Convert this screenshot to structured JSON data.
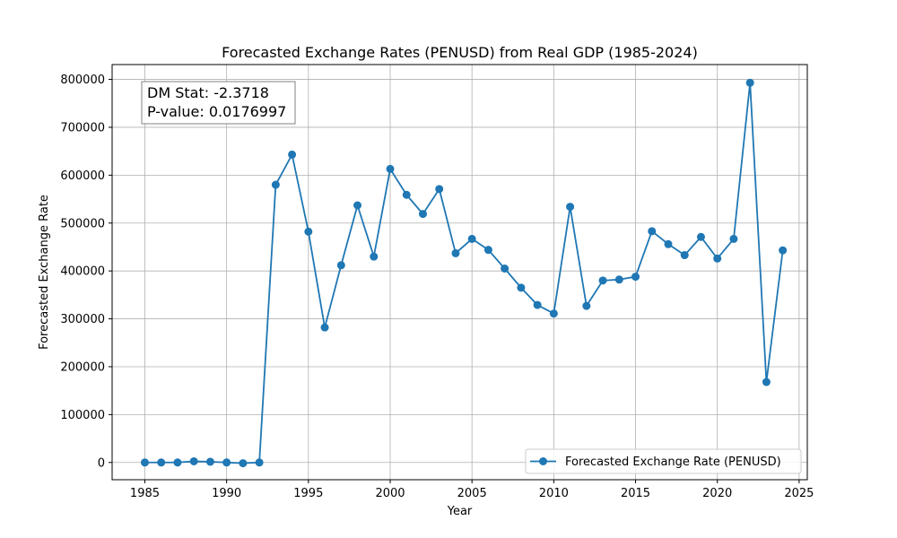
{
  "chart_data": {
    "type": "line",
    "title": "Forecasted Exchange Rates (PENUSD) from Real GDP (1985-2024)",
    "xlabel": "Year",
    "ylabel": "Forecasted Exchange Rate",
    "xlim": [
      1983,
      2025.5
    ],
    "ylim": [
      -36000,
      831000
    ],
    "x_ticks": [
      1985,
      1990,
      1995,
      2000,
      2005,
      2010,
      2015,
      2020,
      2025
    ],
    "y_ticks": [
      0,
      100000,
      200000,
      300000,
      400000,
      500000,
      600000,
      700000,
      800000
    ],
    "grid": true,
    "legend_position": "lower-right",
    "series": [
      {
        "name": "Forecasted Exchange Rate (PENUSD)",
        "color": "#1f77b4",
        "marker": "circle",
        "x": [
          1985,
          1986,
          1987,
          1988,
          1989,
          1990,
          1991,
          1992,
          1993,
          1994,
          1995,
          1996,
          1997,
          1998,
          1999,
          2000,
          2001,
          2002,
          2003,
          2004,
          2005,
          2006,
          2007,
          2008,
          2009,
          2010,
          2011,
          2012,
          2013,
          2014,
          2015,
          2016,
          2017,
          2018,
          2019,
          2020,
          2021,
          2022,
          2023,
          2024
        ],
        "y": [
          0,
          0,
          0,
          2500,
          1500,
          0,
          -1500,
          0,
          580000,
          643000,
          482000,
          282000,
          412000,
          537000,
          430000,
          613000,
          559000,
          519000,
          571000,
          437000,
          467000,
          444000,
          405000,
          365000,
          329000,
          311000,
          534000,
          327000,
          380000,
          382000,
          388000,
          483000,
          456000,
          433000,
          471000,
          426000,
          467000,
          793000,
          168000,
          443000
        ]
      }
    ],
    "annotation": {
      "line1": "DM Stat: -2.3718",
      "line2": "P-value: 0.0176997"
    }
  }
}
